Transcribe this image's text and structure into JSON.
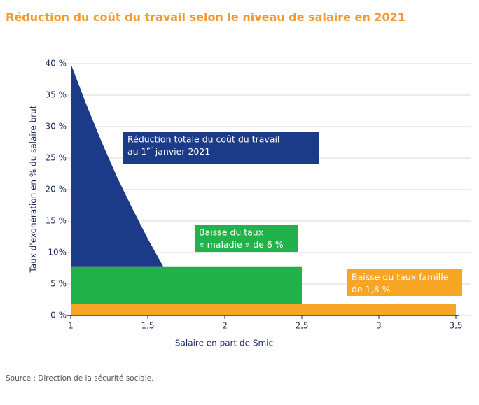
{
  "chart_data": {
    "type": "area",
    "title": "Réduction du coût du travail selon le niveau de salaire en 2021",
    "x_label": "Salaire en part de Smic",
    "y_label": "Taux d'exonération en % du salaire brut",
    "source": "Source : Direction de la sécurité sociale.",
    "stacked": true,
    "grid": true,
    "x": [
      1,
      1.1,
      1.2,
      1.3,
      1.4,
      1.5,
      1.6,
      2.5,
      3.5
    ],
    "series": [
      {
        "name": "Réduction totale",
        "color": "#1b3a87",
        "values": [
          32.2,
          25.8,
          19.8,
          14.2,
          9.2,
          4.4,
          0,
          null,
          null
        ]
      },
      {
        "name": "Baisse du taux maladie",
        "color": "#22b24c",
        "values": [
          6,
          6,
          6,
          6,
          6,
          6,
          6,
          6,
          null
        ]
      },
      {
        "name": "Baisse du taux famille",
        "color": "#f8a424",
        "values": [
          1.8,
          1.8,
          1.8,
          1.8,
          1.8,
          1.8,
          1.8,
          1.8,
          1.8
        ]
      }
    ],
    "annotations": [
      {
        "line1": "Réduction totale du coût du travail",
        "line2": "au 1",
        "sup": "er",
        "line2_end": "janvier 2021"
      },
      {
        "line1": "Baisse du taux",
        "line2": "« maladie » de 6 %"
      },
      {
        "line1": "Baisse du taux famille",
        "line2": "de 1,8 %"
      }
    ],
    "xlim": [
      1,
      3.5
    ],
    "ylim": [
      0,
      40
    ],
    "xticks": [
      1,
      {
        "value": 1.5,
        "label": "1,5"
      },
      2,
      {
        "value": 2.5,
        "label": "2,5"
      },
      3,
      {
        "value": 3.5,
        "label": "3,5"
      }
    ],
    "yticks": [
      {
        "value": 0,
        "label": "0 %"
      },
      {
        "value": 5,
        "label": "5 %"
      },
      {
        "value": 10,
        "label": "10%"
      },
      {
        "value": 15,
        "label": "15 %"
      },
      {
        "value": 20,
        "label": "20 %"
      },
      {
        "value": 25,
        "label": "25 %"
      },
      {
        "value": 30,
        "label": "30 %"
      },
      {
        "value": 35,
        "label": "35 %"
      },
      {
        "value": 40,
        "label": "40 %"
      }
    ]
  }
}
